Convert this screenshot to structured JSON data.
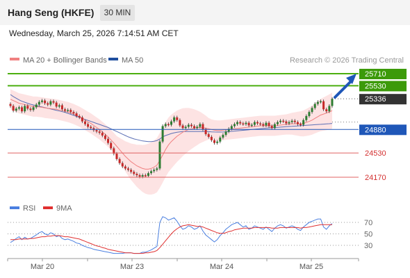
{
  "header": {
    "title": "Hang Seng (HKFE)",
    "interval": "30 MIN",
    "datetime": "Wednesday, March 25, 2026 7:14:51 AM CET"
  },
  "legend": {
    "ma20_label": "MA 20 + Bollinger Bands",
    "ma50_label": "MA 50",
    "copyright": "Research © 2026 Trading Central"
  },
  "colors": {
    "up_candle": "#2e7d32",
    "down_candle": "#c62828",
    "bollinger_fill": "#fde0e0",
    "ma20": "#f08080",
    "ma50": "#5b6fb5",
    "resistance": "#4caf10",
    "pivot": "#1f57b8",
    "support": "#e06060",
    "rsi": "#4a7fe0",
    "rsi_ma": "#e03030"
  },
  "chart_data": {
    "type": "line",
    "price_axis": {
      "min": 23900,
      "max": 25900
    },
    "levels": [
      {
        "value": 25710,
        "label": "25710",
        "kind": "resistance"
      },
      {
        "value": 25530,
        "label": "25530",
        "kind": "resistance"
      },
      {
        "value": 25336,
        "label": "25336",
        "kind": "last"
      },
      {
        "value": 24880,
        "label": "24880",
        "kind": "pivot"
      },
      {
        "value": 24530,
        "label": "24530",
        "kind": "support"
      },
      {
        "value": 24170,
        "label": "24170",
        "kind": "support"
      }
    ],
    "x_labels": [
      "Mar 20",
      "Mar 23",
      "Mar 24",
      "Mar 25"
    ],
    "price_close": [
      25230,
      25160,
      25190,
      25210,
      25150,
      25230,
      25190,
      25170,
      25210,
      25250,
      25290,
      25310,
      25270,
      25250,
      25300,
      25280,
      25220,
      25240,
      25180,
      25160,
      25170,
      25140,
      25120,
      25080,
      25060,
      25000,
      24960,
      24920,
      24900,
      24870,
      24850,
      24830,
      24790,
      24740,
      24680,
      24600,
      24520,
      24440,
      24380,
      24330,
      24300,
      24280,
      24250,
      24220,
      24200,
      24180,
      24200,
      24190,
      24230,
      24260,
      24280,
      24300,
      24700,
      24930,
      24960,
      24950,
      25000,
      25060,
      25020,
      24940,
      24900,
      24920,
      24950,
      24930,
      24900,
      24920,
      24960,
      24880,
      24810,
      24770,
      24720,
      24680,
      24700,
      24760,
      24800,
      24850,
      24890,
      24930,
      24960,
      24990,
      24970,
      24960,
      24980,
      24940,
      24950,
      24990,
      24970,
      24960,
      24940,
      24980,
      24930,
      24900,
      24960,
      24990,
      25010,
      25000,
      24970,
      24990,
      25010,
      24990,
      24960,
      24950,
      25020,
      25080,
      25140,
      25200,
      25260,
      25290,
      25300,
      25180,
      25150,
      25230,
      25336
    ],
    "ma20": [
      25330,
      25310,
      25290,
      25270,
      25260,
      25250,
      25240,
      25230,
      25220,
      25220,
      25215,
      25210,
      25200,
      25195,
      25190,
      25185,
      25180,
      25170,
      25160,
      25150,
      25140,
      25125,
      25110,
      25090,
      25070,
      25045,
      25020,
      24995,
      24970,
      24940,
      24910,
      24880,
      24845,
      24810,
      24770,
      24725,
      24680,
      24630,
      24580,
      24530,
      24480,
      24440,
      24400,
      24370,
      24340,
      24320,
      24300,
      24290,
      24290,
      24300,
      24320,
      24350,
      24420,
      24500,
      24580,
      24650,
      24700,
      24740,
      24780,
      24810,
      24840,
      24860,
      24880,
      24890,
      24900,
      24905,
      24910,
      24905,
      24900,
      24890,
      24880,
      24870,
      24865,
      24865,
      24870,
      24875,
      24880,
      24885,
      24890,
      24895,
      24900,
      24905,
      24910,
      24915,
      24920,
      24925,
      24930,
      24935,
      24935,
      24935,
      24935,
      24935,
      24935,
      24940,
      24945,
      24950,
      24955,
      24960,
      24965,
      24965,
      24965,
      24965,
      24970,
      24985,
      25000,
      25020,
      25045,
      25070,
      25095,
      25110,
      25125,
      25140,
      25160
    ],
    "ma50": [
      25400,
      25370,
      25345,
      25320,
      25300,
      25285,
      25270,
      25255,
      25245,
      25235,
      25225,
      25215,
      25205,
      25195,
      25185,
      25175,
      25165,
      25155,
      25145,
      25135,
      25120,
      25105,
      25090,
      25075,
      25060,
      25045,
      25030,
      25015,
      25000,
      24985,
      24970,
      24955,
      24940,
      24925,
      24910,
      24890,
      24870,
      24850,
      24830,
      24810,
      24790,
      24770,
      24755,
      24740,
      24730,
      24720,
      24710,
      24705,
      24700,
      24700,
      24705,
      24715,
      24740,
      24770,
      24790,
      24805,
      24820,
      24830,
      24840,
      24845,
      24850,
      24850,
      24850,
      24850,
      24850,
      24850,
      24850,
      24850,
      24850,
      24848,
      24845,
      24843,
      24842,
      24842,
      24843,
      24845,
      24848,
      24852,
      24856,
      24860,
      24864,
      24868,
      24872,
      24876,
      24880,
      24884,
      24888,
      24892,
      24896,
      24900,
      24903,
      24906,
      24909,
      24912,
      24915,
      24918,
      24921,
      24924,
      24927,
      24930,
      24933,
      24936,
      24939,
      24942,
      24945,
      24948,
      24951,
      24954,
      24957,
      24960,
      24963,
      24966,
      24970
    ],
    "rsi_axis": {
      "min": 0,
      "max": 100,
      "ticks": [
        "70",
        "50",
        "30"
      ]
    },
    "rsi": [
      35,
      38,
      42,
      45,
      40,
      44,
      41,
      42,
      45,
      48,
      52,
      54,
      50,
      48,
      52,
      50,
      45,
      47,
      42,
      40,
      41,
      39,
      37,
      34,
      33,
      30,
      28,
      26,
      25,
      23,
      22,
      21,
      20,
      19,
      18,
      17,
      16,
      16,
      16,
      16,
      17,
      17,
      17,
      16,
      16,
      16,
      18,
      18,
      20,
      22,
      25,
      28,
      70,
      80,
      78,
      74,
      76,
      78,
      72,
      64,
      58,
      60,
      64,
      62,
      58,
      60,
      64,
      55,
      48,
      44,
      40,
      36,
      40,
      47,
      52,
      58,
      62,
      66,
      68,
      70,
      66,
      62,
      64,
      58,
      60,
      64,
      62,
      60,
      58,
      62,
      58,
      54,
      60,
      64,
      66,
      64,
      60,
      62,
      64,
      62,
      58,
      56,
      62,
      66,
      70,
      72,
      74,
      76,
      76,
      62,
      58,
      64,
      68
    ],
    "rsi_ma": [
      40,
      40,
      40,
      41,
      41,
      41,
      41,
      42,
      42,
      43,
      44,
      45,
      45,
      46,
      46,
      47,
      47,
      47,
      46,
      45,
      45,
      44,
      43,
      42,
      41,
      39,
      37,
      35,
      33,
      31,
      29,
      28,
      26,
      25,
      23,
      22,
      21,
      20,
      19,
      18,
      17,
      17,
      17,
      16,
      16,
      16,
      16,
      17,
      17,
      18,
      19,
      21,
      26,
      32,
      38,
      44,
      50,
      55,
      59,
      62,
      64,
      65,
      66,
      65,
      64,
      63,
      63,
      62,
      60,
      58,
      56,
      54,
      52,
      51,
      51,
      52,
      54,
      55,
      57,
      58,
      59,
      60,
      60,
      60,
      60,
      61,
      61,
      61,
      61,
      61,
      61,
      60,
      60,
      60,
      61,
      61,
      61,
      61,
      61,
      61,
      61,
      60,
      61,
      61,
      62,
      63,
      64,
      65,
      66,
      66,
      66,
      66,
      66
    ]
  }
}
